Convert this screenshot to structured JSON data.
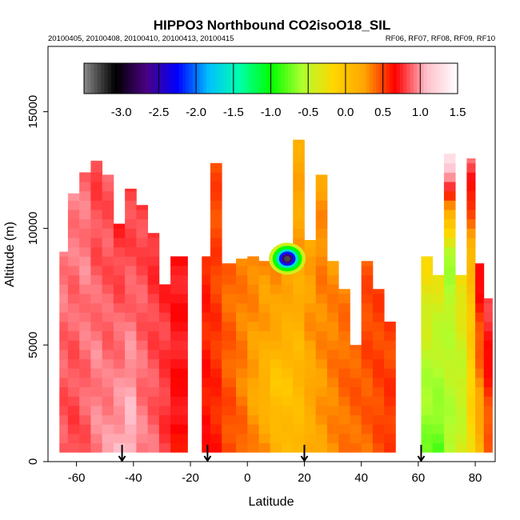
{
  "chart_data": {
    "type": "heatmap",
    "title": "HIPPO3 Northbound CO2isoO18_SIL",
    "subtitle_left": "20100405, 20100408, 20100410, 20100413, 20100415",
    "subtitle_right": "RF06, RF07, RF08, RF09, RF10",
    "xlabel": "Latitude",
    "ylabel": "Altitude (m)",
    "xlim": [
      -70,
      87
    ],
    "ylim": [
      0,
      17800
    ],
    "x_ticks": [
      -60,
      -40,
      -20,
      0,
      20,
      40,
      60,
      80
    ],
    "y_ticks": [
      0,
      5000,
      10000,
      15000
    ],
    "colorbar": {
      "min": -3.5,
      "max": 1.5,
      "ticks": [
        -3.0,
        -2.5,
        -2.0,
        -1.5,
        -1.0,
        -0.5,
        0.0,
        0.5,
        1.0,
        1.5
      ],
      "tick_labels": [
        "-3.0",
        "-2.5",
        "-2.0",
        "-1.5",
        "-1.0",
        "-0.5",
        "0.0",
        "0.5",
        "1.0",
        "1.5"
      ],
      "colors": [
        "#888888",
        "#000000",
        "#4b0082",
        "#0000ff",
        "#00bfff",
        "#00ffaa",
        "#00ff00",
        "#adff2f",
        "#ffd700",
        "#ffa500",
        "#ff0000",
        "#ffc0cb",
        "#ffffff"
      ]
    },
    "flight_markers_latitude": [
      -44,
      -14,
      20,
      61
    ],
    "columns": [
      {
        "x0": -66,
        "x1": -63,
        "top": 9000,
        "profile": [
          0.85,
          0.85,
          0.9,
          0.95
        ]
      },
      {
        "x0": -63,
        "x1": -59,
        "top": 11500,
        "profile": [
          0.8,
          0.85,
          0.9,
          0.95
        ]
      },
      {
        "x0": -59,
        "x1": -55,
        "top": 12400,
        "profile": [
          0.85,
          0.9,
          0.95,
          0.9
        ]
      },
      {
        "x0": -55,
        "x1": -51,
        "top": 12900,
        "profile": [
          0.95,
          0.95,
          0.85,
          0.8
        ]
      },
      {
        "x0": -51,
        "x1": -47,
        "top": 12300,
        "profile": [
          1.0,
          0.9,
          0.85,
          0.85
        ]
      },
      {
        "x0": -47,
        "x1": -43,
        "top": 10200,
        "profile": [
          1.05,
          0.95,
          0.85,
          0.75
        ]
      },
      {
        "x0": -43,
        "x1": -39,
        "top": 11700,
        "profile": [
          1.1,
          1.0,
          0.85,
          0.8
        ]
      },
      {
        "x0": -39,
        "x1": -35,
        "top": 11000,
        "profile": [
          0.95,
          0.9,
          0.85,
          0.8
        ]
      },
      {
        "x0": -35,
        "x1": -31,
        "top": 9800,
        "profile": [
          0.9,
          0.85,
          0.8,
          0.75
        ]
      },
      {
        "x0": -31,
        "x1": -27,
        "top": 7600,
        "profile": [
          0.8,
          0.78,
          0.8,
          0.75
        ]
      },
      {
        "x0": -27,
        "x1": -21,
        "top": 8800,
        "profile": [
          0.65,
          0.7,
          0.72,
          0.7
        ]
      },
      {
        "x0": -16,
        "x1": -13,
        "top": 8800,
        "profile": [
          0.65,
          0.62,
          0.58,
          0.6
        ]
      },
      {
        "x0": -13,
        "x1": -9,
        "top": 12800,
        "profile": [
          0.6,
          0.55,
          0.5,
          0.48
        ]
      },
      {
        "x0": -9,
        "x1": -4,
        "top": 8500,
        "profile": [
          0.5,
          0.45,
          0.42,
          0.4
        ]
      },
      {
        "x0": -4,
        "x1": 0,
        "top": 8700,
        "profile": [
          0.45,
          0.35,
          0.35,
          0.35
        ]
      },
      {
        "x0": 0,
        "x1": 4,
        "top": 8800,
        "profile": [
          0.35,
          0.22,
          0.3,
          0.35
        ]
      },
      {
        "x0": 4,
        "x1": 8,
        "top": 8600,
        "profile": [
          0.3,
          0.1,
          0.25,
          0.3
        ]
      },
      {
        "x0": 8,
        "x1": 12,
        "top": 8800,
        "profile": [
          0.2,
          -0.05,
          0.25,
          0.3
        ]
      },
      {
        "x0": 12,
        "x1": 16,
        "top": 9200,
        "profile": [
          0.1,
          0.0,
          0.2,
          0.25
        ]
      },
      {
        "x0": 16,
        "x1": 20,
        "top": 13800,
        "profile": [
          0.05,
          0.1,
          0.25,
          0.2
        ]
      },
      {
        "x0": 20,
        "x1": 24,
        "top": 9500,
        "profile": [
          0.2,
          0.2,
          0.3,
          0.2
        ]
      },
      {
        "x0": 24,
        "x1": 28,
        "top": 12300,
        "profile": [
          0.25,
          0.3,
          0.35,
          0.25
        ]
      },
      {
        "x0": 28,
        "x1": 32,
        "top": 8600,
        "profile": [
          0.3,
          0.35,
          0.35,
          0.3
        ]
      },
      {
        "x0": 32,
        "x1": 36,
        "top": 7400,
        "profile": [
          0.35,
          0.4,
          0.4,
          0.35
        ]
      },
      {
        "x0": 36,
        "x1": 40,
        "top": 5000,
        "profile": [
          0.4,
          0.4,
          0.45,
          0.4
        ]
      },
      {
        "x0": 40,
        "x1": 44,
        "top": 8600,
        "profile": [
          0.4,
          0.45,
          0.5,
          0.45
        ]
      },
      {
        "x0": 44,
        "x1": 48,
        "top": 7400,
        "profile": [
          0.45,
          0.5,
          0.5,
          0.5
        ]
      },
      {
        "x0": 48,
        "x1": 52,
        "top": 6000,
        "profile": [
          0.5,
          0.55,
          0.5,
          0.5
        ]
      },
      {
        "x0": 61,
        "x1": 65,
        "top": 8800,
        "profile": [
          -0.7,
          -0.6,
          -0.4,
          -0.2
        ]
      },
      {
        "x0": 65,
        "x1": 69,
        "top": 8000,
        "profile": [
          -0.8,
          -0.6,
          -0.5,
          -0.3
        ]
      },
      {
        "x0": 69,
        "x1": 73,
        "top": 13200,
        "profile": [
          -0.6,
          -0.5,
          -0.6,
          1.4
        ]
      },
      {
        "x0": 73,
        "x1": 77,
        "top": 8000,
        "profile": [
          -0.4,
          -0.5,
          -0.4,
          -0.2
        ]
      },
      {
        "x0": 77,
        "x1": 80,
        "top": 13000,
        "profile": [
          -0.2,
          -0.1,
          0.1,
          0.9
        ]
      },
      {
        "x0": 80,
        "x1": 83,
        "top": 8500,
        "profile": [
          0.1,
          0.3,
          0.5,
          0.75
        ]
      },
      {
        "x0": 83,
        "x1": 86,
        "top": 7000,
        "profile": [
          0.4,
          0.5,
          0.7,
          0.8
        ]
      }
    ],
    "anomaly": {
      "lat": 14,
      "alt": 8700,
      "min_value": -3.3,
      "note": "strong negative blob"
    }
  }
}
